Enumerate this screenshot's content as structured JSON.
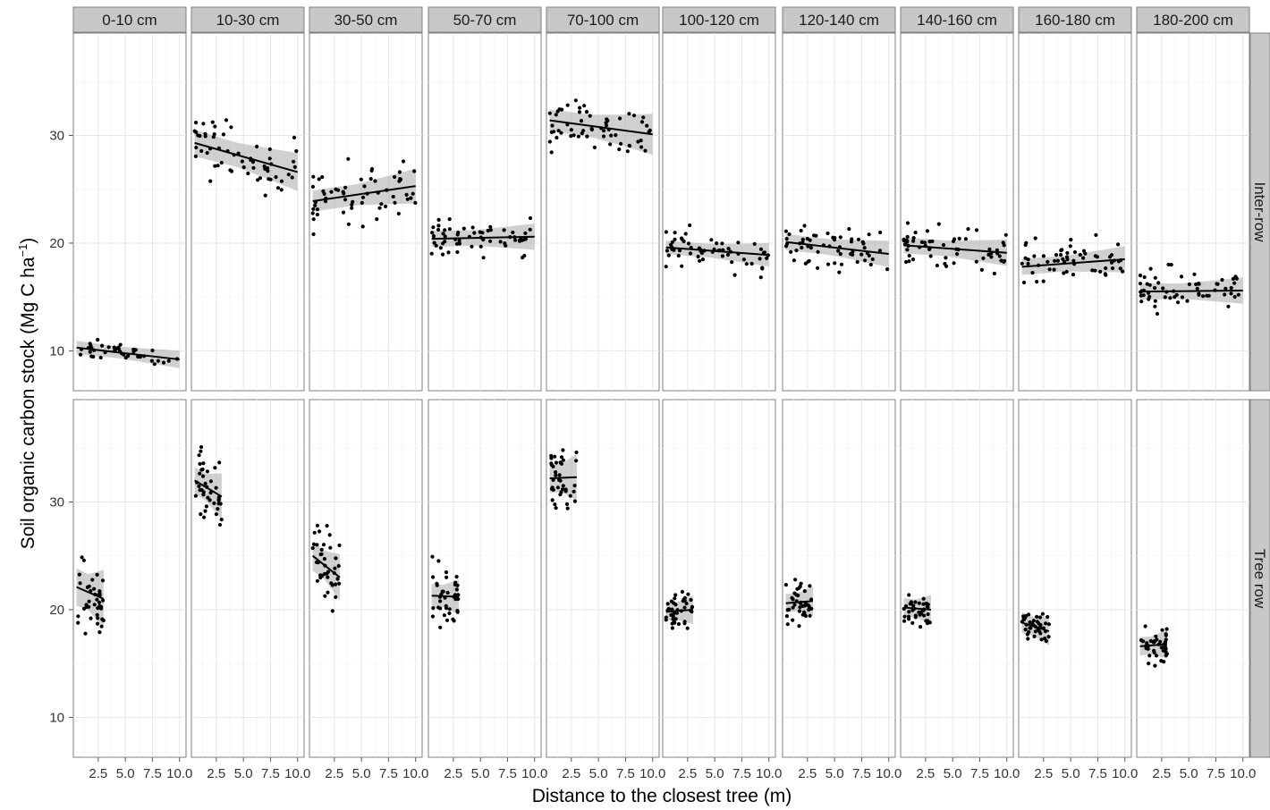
{
  "chart_data": {
    "type": "scatter",
    "xlabel": "Distance to the closest tree (m)",
    "ylabel_main": "Soil organic carbon stock (Mg C  ha",
    "ylabel_sup": "−1",
    "ylabel_close": ")",
    "x_ticks": [
      "2.5",
      "5.0",
      "7.5",
      "10.0"
    ],
    "x_tick_values": [
      2.5,
      5.0,
      7.5,
      10.0
    ],
    "y_ticks": [
      "10",
      "20",
      "30"
    ],
    "y_tick_values": [
      10,
      20,
      30
    ],
    "xlim": [
      0.2,
      10.6
    ],
    "ylim": [
      6.3,
      39.5
    ],
    "grid": true,
    "depth_strips": [
      "0-10 cm",
      "10-30 cm",
      "30-50 cm",
      "50-70 cm",
      "70-100 cm",
      "100-120 cm",
      "120-140 cm",
      "140-160 cm",
      "160-180 cm",
      "180-200 cm"
    ],
    "row_strips": [
      "Inter-row",
      "Tree row"
    ],
    "fits": {
      "inter_row": [
        {
          "x0": 0.5,
          "x1": 10.0,
          "y0": 10.3,
          "y1": 9.2,
          "se0": 0.5,
          "se1": 0.6,
          "n": 40,
          "spread": 0.8
        },
        {
          "x0": 0.5,
          "x1": 10.0,
          "y0": 29.3,
          "y1": 26.6,
          "se0": 1.0,
          "se1": 1.3,
          "n": 60,
          "spread": 2.6
        },
        {
          "x0": 0.5,
          "x1": 10.0,
          "y0": 23.9,
          "y1": 25.3,
          "se0": 0.8,
          "se1": 1.2,
          "n": 60,
          "spread": 2.8
        },
        {
          "x0": 0.5,
          "x1": 10.0,
          "y0": 20.4,
          "y1": 20.6,
          "se0": 0.6,
          "se1": 0.9,
          "n": 60,
          "spread": 1.6
        },
        {
          "x0": 0.5,
          "x1": 10.0,
          "y0": 31.4,
          "y1": 30.1,
          "se0": 0.8,
          "se1": 1.4,
          "n": 60,
          "spread": 2.5
        },
        {
          "x0": 0.5,
          "x1": 10.0,
          "y0": 19.6,
          "y1": 18.9,
          "se0": 0.5,
          "se1": 0.8,
          "n": 60,
          "spread": 1.6
        },
        {
          "x0": 0.5,
          "x1": 10.0,
          "y0": 20.1,
          "y1": 19.0,
          "se0": 0.6,
          "se1": 0.9,
          "n": 60,
          "spread": 2.0
        },
        {
          "x0": 0.5,
          "x1": 10.0,
          "y0": 19.8,
          "y1": 19.1,
          "se0": 0.6,
          "se1": 0.9,
          "n": 60,
          "spread": 1.9
        },
        {
          "x0": 0.5,
          "x1": 10.0,
          "y0": 17.8,
          "y1": 18.5,
          "se0": 0.6,
          "se1": 0.9,
          "n": 60,
          "spread": 2.0
        },
        {
          "x0": 0.5,
          "x1": 10.0,
          "y0": 15.5,
          "y1": 15.6,
          "se0": 0.6,
          "se1": 0.9,
          "n": 60,
          "spread": 1.9
        }
      ],
      "tree_row": [
        {
          "x0": 0.5,
          "x1": 3.0,
          "y0": 22.1,
          "y1": 21.0,
          "se0": 1.4,
          "se1": 2.0,
          "n": 40,
          "spread": 4.0
        },
        {
          "x0": 0.5,
          "x1": 3.0,
          "y0": 32.0,
          "y1": 30.5,
          "se0": 1.0,
          "se1": 1.6,
          "n": 40,
          "spread": 3.0
        },
        {
          "x0": 0.5,
          "x1": 3.0,
          "y0": 25.0,
          "y1": 23.0,
          "se0": 1.1,
          "se1": 1.6,
          "n": 40,
          "spread": 3.0
        },
        {
          "x0": 0.5,
          "x1": 3.0,
          "y0": 21.3,
          "y1": 21.2,
          "se0": 0.9,
          "se1": 1.2,
          "n": 40,
          "spread": 2.8
        },
        {
          "x0": 0.5,
          "x1": 3.0,
          "y0": 32.2,
          "y1": 32.3,
          "se0": 1.1,
          "se1": 1.6,
          "n": 40,
          "spread": 2.8
        },
        {
          "x0": 0.5,
          "x1": 3.0,
          "y0": 19.8,
          "y1": 20.0,
          "se0": 0.7,
          "se1": 1.0,
          "n": 40,
          "spread": 1.6
        },
        {
          "x0": 0.5,
          "x1": 3.0,
          "y0": 20.6,
          "y1": 20.8,
          "se0": 0.7,
          "se1": 1.0,
          "n": 40,
          "spread": 1.8
        },
        {
          "x0": 0.5,
          "x1": 3.0,
          "y0": 20.2,
          "y1": 20.0,
          "se0": 0.7,
          "se1": 1.0,
          "n": 40,
          "spread": 1.6
        },
        {
          "x0": 0.5,
          "x1": 3.0,
          "y0": 18.8,
          "y1": 18.0,
          "se0": 0.8,
          "se1": 1.0,
          "n": 40,
          "spread": 1.6
        },
        {
          "x0": 0.5,
          "x1": 3.0,
          "y0": 16.6,
          "y1": 16.8,
          "se0": 0.7,
          "se1": 1.0,
          "n": 40,
          "spread": 1.8
        }
      ]
    }
  }
}
